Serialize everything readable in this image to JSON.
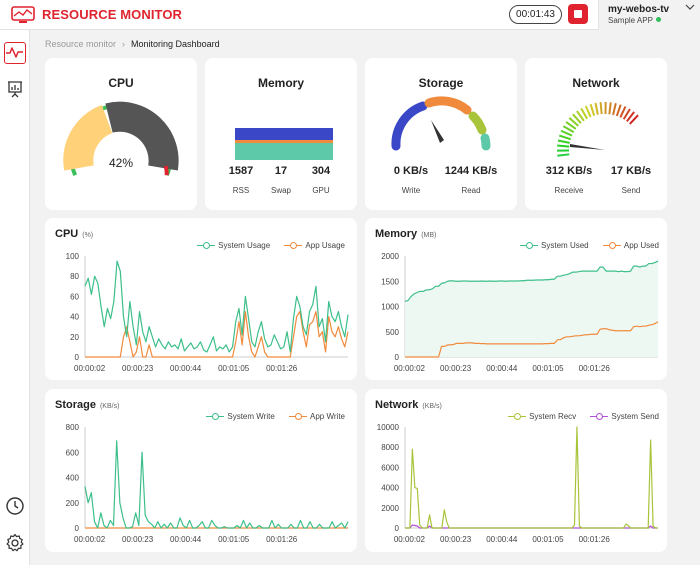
{
  "app": {
    "title": "RESOURCE MONITOR",
    "logo_icon": "monitor-logo-icon"
  },
  "header": {
    "timer": "00:01:43",
    "stop_icon": "stop-icon",
    "device": {
      "name": "my-webos-tv",
      "app": "Sample APP",
      "status_color": "#2fbf5a"
    }
  },
  "sidebar": {
    "items": [
      {
        "name": "activity",
        "icon": "activity-icon",
        "active": true
      },
      {
        "name": "presentation",
        "icon": "presentation-chart-icon",
        "active": false
      },
      {
        "name": "history",
        "icon": "clock-icon",
        "active": false
      },
      {
        "name": "settings",
        "icon": "gear-icon",
        "active": false
      }
    ]
  },
  "breadcrumb": {
    "parent": "Resource monitor",
    "current": "Monitoring Dashboard"
  },
  "gauges": {
    "cpu": {
      "title": "CPU",
      "value_label": "42%",
      "value": 42
    },
    "memory": {
      "title": "Memory",
      "stats": [
        {
          "value": "1587",
          "label": "RSS",
          "color": "#5ec9a9"
        },
        {
          "value": "17",
          "label": "Swap",
          "color": "#f08a3c"
        },
        {
          "value": "304",
          "label": "GPU",
          "color": "#3a48c8"
        }
      ]
    },
    "storage": {
      "title": "Storage",
      "stats": [
        {
          "value": "0 KB/s",
          "label": "Write"
        },
        {
          "value": "1244 KB/s",
          "label": "Read"
        }
      ]
    },
    "network": {
      "title": "Network",
      "stats": [
        {
          "value": "312 KB/s",
          "label": "Receive"
        },
        {
          "value": "17 KB/s",
          "label": "Send"
        }
      ]
    }
  },
  "charts": {
    "cpu": {
      "title": "CPU",
      "unit": "(%)"
    },
    "memory": {
      "title": "Memory",
      "unit": "(MB)"
    },
    "storage": {
      "title": "Storage",
      "unit": "(KB/s)"
    },
    "network": {
      "title": "Network",
      "unit": "(KB/s)"
    }
  },
  "chart_data": [
    {
      "type": "line",
      "id": "cpu",
      "ylim": [
        0,
        100
      ],
      "yticks": [
        0,
        20,
        40,
        60,
        80,
        100
      ],
      "xlim": [
        0,
        115
      ],
      "xticks": [
        {
          "v": 2,
          "label": "00:00:02"
        },
        {
          "v": 23,
          "label": "00:00:23"
        },
        {
          "v": 44,
          "label": "00:00:44"
        },
        {
          "v": 65,
          "label": "00:01:05"
        },
        {
          "v": 86,
          "label": "00:01:26"
        }
      ],
      "grid": false,
      "legend": "top-right",
      "series": [
        {
          "name": "System Usage",
          "color": "#3dbf8a",
          "values": [
            70,
            78,
            62,
            80,
            73,
            50,
            30,
            48,
            38,
            55,
            95,
            85,
            40,
            20,
            55,
            30,
            12,
            45,
            25,
            15,
            30,
            20,
            10,
            18,
            12,
            8,
            15,
            10,
            12,
            8,
            18,
            6,
            10,
            14,
            8,
            10,
            15,
            7,
            5,
            12,
            20,
            6,
            10,
            8,
            12,
            5,
            10,
            35,
            48,
            22,
            60,
            38,
            15,
            10,
            25,
            35,
            18,
            10,
            12,
            22,
            15,
            8,
            10,
            25,
            5,
            38,
            60,
            50,
            30,
            22,
            45,
            52,
            70,
            30,
            38,
            15,
            55,
            40,
            35,
            45,
            30,
            20,
            42
          ]
        },
        {
          "name": "App Usage",
          "color": "#f08a3c",
          "values": [
            0,
            0,
            0,
            0,
            0,
            0,
            0,
            0,
            0,
            0,
            0,
            0,
            20,
            30,
            15,
            0,
            5,
            20,
            0,
            0,
            12,
            0,
            0,
            0,
            0,
            0,
            0,
            0,
            0,
            0,
            0,
            0,
            0,
            0,
            0,
            0,
            0,
            0,
            0,
            0,
            0,
            0,
            0,
            0,
            0,
            0,
            0,
            15,
            35,
            12,
            45,
            20,
            5,
            0,
            10,
            20,
            5,
            0,
            0,
            0,
            0,
            0,
            0,
            0,
            0,
            20,
            40,
            45,
            25,
            10,
            32,
            35,
            45,
            20,
            25,
            5,
            40,
            25,
            20,
            30,
            18,
            10,
            25
          ]
        }
      ]
    },
    {
      "type": "line",
      "id": "memory",
      "ylim": [
        0,
        2000
      ],
      "yticks": [
        0,
        500,
        1000,
        1500,
        2000
      ],
      "xlim": [
        0,
        115
      ],
      "xticks": [
        {
          "v": 2,
          "label": "00:00:02"
        },
        {
          "v": 23,
          "label": "00:00:23"
        },
        {
          "v": 44,
          "label": "00:00:44"
        },
        {
          "v": 65,
          "label": "00:01:05"
        },
        {
          "v": 86,
          "label": "00:01:26"
        }
      ],
      "grid": false,
      "legend": "top-right",
      "series": [
        {
          "name": "System Used",
          "color": "#3dbf8a",
          "values": [
            1100,
            1120,
            1200,
            1250,
            1280,
            1300,
            1300,
            1330,
            1330,
            1350,
            1400,
            1400,
            1460,
            1470,
            1500,
            1510,
            1505,
            1500,
            1500,
            1505,
            1505,
            1500,
            1500,
            1500,
            1500,
            1505,
            1500,
            1500,
            1505,
            1500,
            1500,
            1505,
            1505,
            1500,
            1505,
            1505,
            1505,
            1505,
            1510,
            1510,
            1520,
            1520,
            1520,
            1525,
            1525,
            1525,
            1530,
            1530,
            1540,
            1540,
            1600,
            1600,
            1620,
            1630,
            1650,
            1680,
            1680,
            1690,
            1700,
            1700,
            1700,
            1700,
            1700,
            1700,
            1780,
            1780,
            1700,
            1700,
            1700,
            1700,
            1690,
            1700,
            1690,
            1690,
            1700,
            1800,
            1800,
            1780,
            1800,
            1800,
            1850,
            1850,
            1870,
            1900
          ]
        },
        {
          "name": "App Used",
          "color": "#f08a3c",
          "values": [
            0,
            0,
            0,
            0,
            0,
            0,
            0,
            0,
            0,
            0,
            0,
            0,
            210,
            210,
            240,
            240,
            250,
            270,
            270,
            270,
            280,
            280,
            280,
            270,
            270,
            265,
            265,
            260,
            260,
            260,
            260,
            260,
            260,
            260,
            260,
            260,
            260,
            260,
            260,
            260,
            260,
            260,
            260,
            260,
            260,
            260,
            265,
            265,
            270,
            270,
            340,
            345,
            380,
            400,
            400,
            410,
            420,
            420,
            430,
            440,
            440,
            450,
            450,
            450,
            550,
            560,
            560,
            540,
            530,
            520,
            520,
            520,
            520,
            520,
            520,
            600,
            610,
            600,
            610,
            610,
            630,
            640,
            660,
            700
          ]
        }
      ]
    },
    {
      "type": "line",
      "id": "storage",
      "ylim": [
        0,
        800
      ],
      "yticks": [
        0,
        200,
        400,
        600,
        800
      ],
      "xlim": [
        0,
        115
      ],
      "xticks": [
        {
          "v": 2,
          "label": "00:00:02"
        },
        {
          "v": 23,
          "label": "00:00:23"
        },
        {
          "v": 44,
          "label": "00:00:44"
        },
        {
          "v": 65,
          "label": "00:01:05"
        },
        {
          "v": 86,
          "label": "00:01:26"
        }
      ],
      "grid": false,
      "legend": "top-right",
      "series": [
        {
          "name": "System Write",
          "color": "#3dbf8a",
          "values": [
            330,
            200,
            280,
            50,
            0,
            120,
            20,
            0,
            60,
            20,
            690,
            200,
            80,
            0,
            0,
            10,
            120,
            20,
            600,
            100,
            50,
            30,
            0,
            50,
            0,
            30,
            0,
            40,
            0,
            0,
            80,
            20,
            0,
            60,
            0,
            0,
            20,
            50,
            0,
            0,
            60,
            20,
            0,
            0,
            10,
            0,
            0,
            0,
            20,
            0,
            60,
            0,
            40,
            0,
            0,
            20,
            0,
            0,
            0,
            60,
            0,
            30,
            0,
            0,
            0,
            30,
            0,
            0,
            60,
            0,
            0,
            50,
            0,
            0,
            30,
            0,
            0,
            0,
            50,
            0,
            20,
            40,
            0,
            50
          ]
        },
        {
          "name": "App Write",
          "color": "#f08a3c",
          "values": [
            0,
            0,
            0,
            0,
            0,
            0,
            0,
            0,
            0,
            0,
            0,
            0,
            0,
            0,
            0,
            0,
            0,
            0,
            0,
            0,
            0,
            0,
            0,
            0,
            0,
            0,
            0,
            0,
            0,
            0,
            0,
            0,
            0,
            0,
            0,
            0,
            0,
            0,
            0,
            0,
            0,
            0,
            0,
            0,
            0,
            0,
            0,
            0,
            0,
            0,
            0,
            0,
            0,
            0,
            0,
            0,
            0,
            0,
            0,
            0,
            0,
            0,
            0,
            0,
            0,
            0,
            0,
            0,
            0,
            0,
            0,
            0,
            0,
            0,
            0,
            0,
            0,
            0,
            0,
            0,
            0,
            0,
            0,
            0
          ]
        }
      ]
    },
    {
      "type": "line",
      "id": "network",
      "ylim": [
        0,
        10000
      ],
      "yticks": [
        0,
        2000,
        4000,
        6000,
        8000,
        10000
      ],
      "xlim": [
        0,
        115
      ],
      "xticks": [
        {
          "v": 2,
          "label": "00:00:02"
        },
        {
          "v": 23,
          "label": "00:00:23"
        },
        {
          "v": 44,
          "label": "00:00:44"
        },
        {
          "v": 65,
          "label": "00:01:05"
        },
        {
          "v": 86,
          "label": "00:01:26"
        }
      ],
      "grid": false,
      "legend": "top-right",
      "series": [
        {
          "name": "System Recv",
          "color": "#a8c43a",
          "values": [
            0,
            0,
            0,
            7800,
            4000,
            3900,
            300,
            0,
            0,
            0,
            1300,
            0,
            0,
            0,
            0,
            0,
            1800,
            600,
            0,
            0,
            0,
            0,
            0,
            0,
            0,
            0,
            0,
            0,
            0,
            0,
            0,
            0,
            0,
            0,
            0,
            0,
            0,
            0,
            0,
            0,
            0,
            0,
            0,
            0,
            0,
            0,
            0,
            0,
            0,
            0,
            0,
            0,
            0,
            0,
            0,
            0,
            0,
            0,
            0,
            0,
            0,
            0,
            0,
            0,
            0,
            0,
            0,
            0,
            0,
            300,
            10000,
            200,
            0,
            0,
            0,
            0,
            0,
            0,
            0,
            0,
            0,
            0,
            0,
            0,
            0,
            0,
            0,
            0,
            0,
            0,
            400,
            200,
            0,
            0,
            0,
            0,
            0,
            0,
            0,
            0,
            8700,
            200,
            0,
            0
          ]
        },
        {
          "name": "System Send",
          "color": "#b44fd6",
          "values": [
            0,
            0,
            0,
            300,
            250,
            200,
            0,
            0,
            0,
            0,
            200,
            0,
            0,
            0,
            0,
            0,
            0,
            0,
            0,
            0,
            0,
            0,
            0,
            0,
            0,
            0,
            0,
            0,
            0,
            0,
            0,
            0,
            0,
            0,
            0,
            0,
            0,
            0,
            0,
            0,
            0,
            0,
            0,
            0,
            0,
            0,
            0,
            0,
            0,
            0,
            0,
            0,
            0,
            0,
            0,
            0,
            0,
            0,
            0,
            0,
            0,
            0,
            0,
            0,
            0,
            0,
            0,
            0,
            0,
            0,
            0,
            0,
            0,
            0,
            0,
            0,
            0,
            0,
            0,
            0,
            0,
            0,
            0,
            0,
            0,
            0,
            0,
            0,
            0,
            0,
            0,
            0,
            0,
            0,
            0,
            0,
            0,
            0,
            0,
            0,
            200,
            0,
            0,
            0
          ]
        }
      ]
    }
  ]
}
